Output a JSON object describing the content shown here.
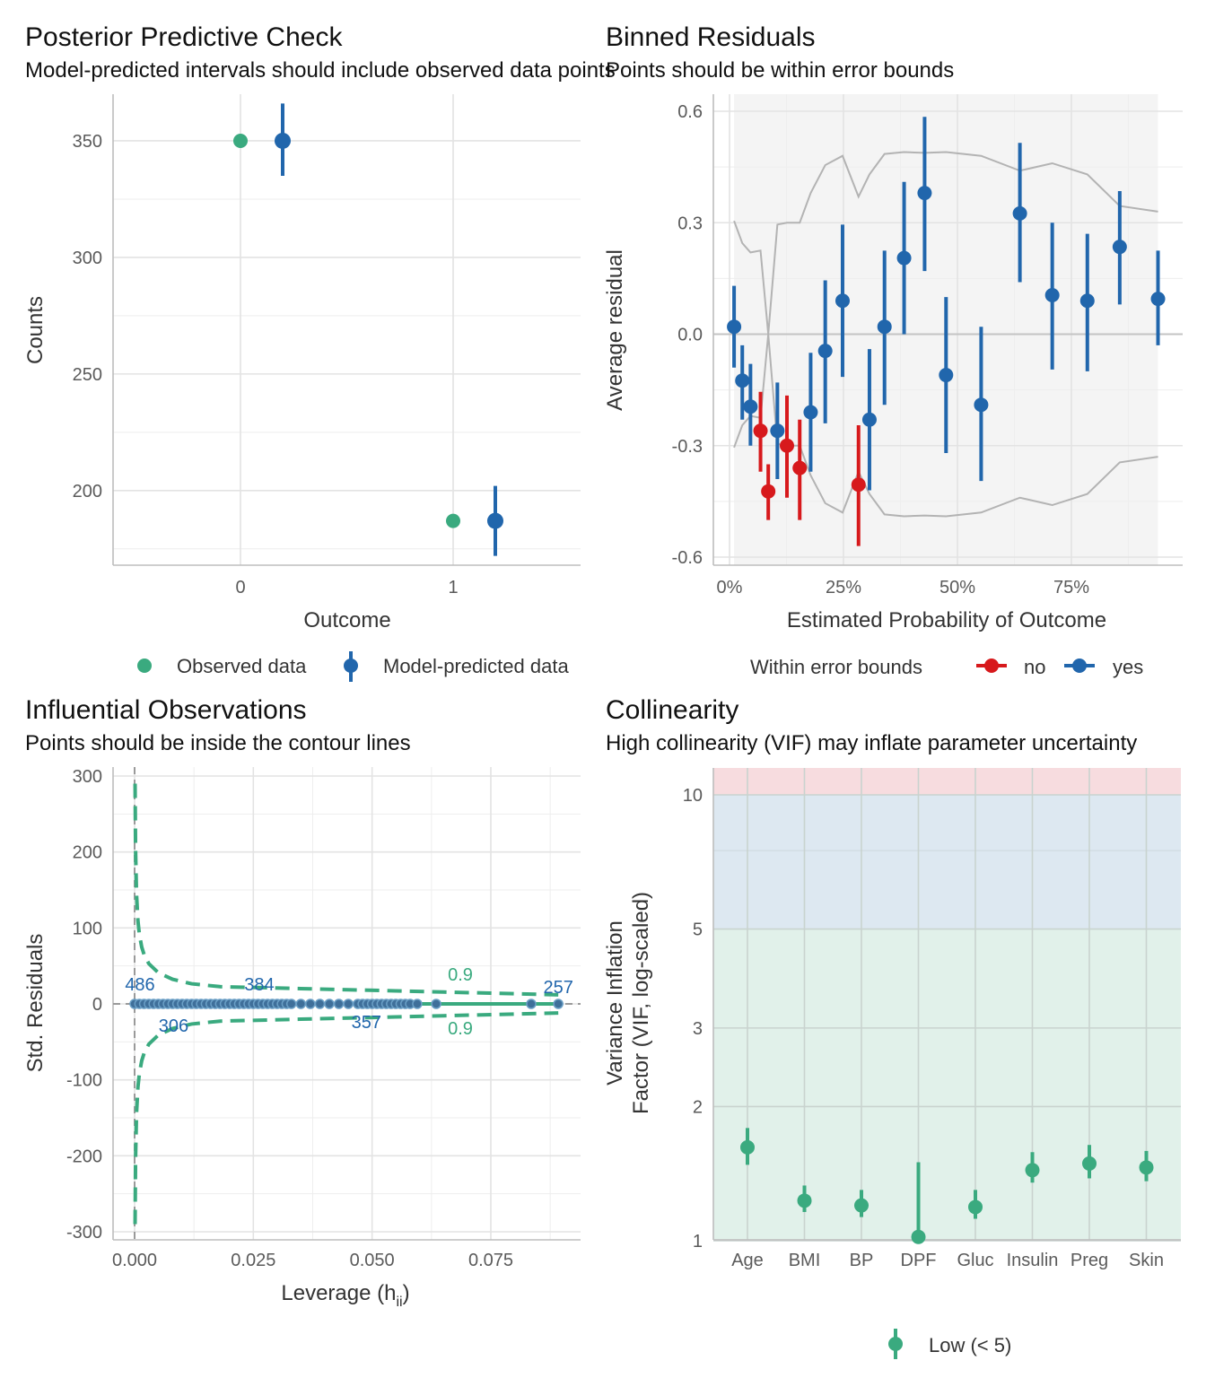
{
  "colors": {
    "observed": "#3aaa7f",
    "predicted": "#2166ac",
    "within_no": "#d7191c",
    "within_yes": "#2166ac",
    "bound_line": "#b3b3b3",
    "contour": "#3aaa7f",
    "vif_low_bg": "#e1f1ea",
    "vif_mod_bg": "#dde8f1",
    "vif_high_bg": "#f7dcdf",
    "vif_point": "#3aaa7f"
  },
  "chart_data": [
    {
      "type": "scatter",
      "title": "Posterior Predictive Check",
      "subtitle": "Model-predicted intervals should include observed data points",
      "xlabel": "Outcome",
      "ylabel": "Counts",
      "categories": [
        "0",
        "1"
      ],
      "yticks": [
        "200",
        "250",
        "300",
        "350"
      ],
      "ylim": [
        168,
        370
      ],
      "observed": [
        350,
        187
      ],
      "predicted": [
        {
          "value": 350,
          "low": 335,
          "high": 366
        },
        {
          "value": 187,
          "low": 172,
          "high": 202
        }
      ],
      "legend": [
        "Observed data",
        "Model-predicted data"
      ]
    },
    {
      "type": "scatter",
      "title": "Binned Residuals",
      "subtitle": "Points should be within error bounds",
      "xlabel": "Estimated Probability of Outcome",
      "ylabel": "Average residual",
      "xticks": [
        "0%",
        "25%",
        "50%",
        "75%"
      ],
      "yticks": [
        "-0.6",
        "-0.3",
        "0.0",
        "0.3",
        "0.6"
      ],
      "xlim": [
        -0.02,
        0.97
      ],
      "ylim": [
        -0.62,
        0.63
      ],
      "legend_title": "Within error bounds",
      "legend": [
        "no",
        "yes"
      ],
      "bins": [
        {
          "x": 0.01,
          "y": 0.02,
          "low": -0.09,
          "high": 0.13,
          "within": "yes"
        },
        {
          "x": 0.028,
          "y": -0.125,
          "low": -0.23,
          "high": -0.03,
          "within": "yes"
        },
        {
          "x": 0.046,
          "y": -0.195,
          "low": -0.3,
          "high": -0.08,
          "within": "yes"
        },
        {
          "x": 0.068,
          "y": -0.26,
          "low": -0.37,
          "high": -0.155,
          "within": "no"
        },
        {
          "x": 0.085,
          "y": -0.423,
          "low": -0.5,
          "high": -0.35,
          "within": "no"
        },
        {
          "x": 0.105,
          "y": -0.26,
          "low": -0.39,
          "high": -0.13,
          "within": "yes"
        },
        {
          "x": 0.126,
          "y": -0.3,
          "low": -0.44,
          "high": -0.165,
          "within": "no"
        },
        {
          "x": 0.154,
          "y": -0.36,
          "low": -0.5,
          "high": -0.23,
          "within": "no"
        },
        {
          "x": 0.178,
          "y": -0.21,
          "low": -0.37,
          "high": -0.05,
          "within": "yes"
        },
        {
          "x": 0.21,
          "y": -0.045,
          "low": -0.24,
          "high": 0.145,
          "within": "yes"
        },
        {
          "x": 0.248,
          "y": 0.09,
          "low": -0.115,
          "high": 0.295,
          "within": "yes"
        },
        {
          "x": 0.283,
          "y": -0.405,
          "low": -0.57,
          "high": -0.245,
          "within": "no"
        },
        {
          "x": 0.307,
          "y": -0.23,
          "low": -0.42,
          "high": -0.04,
          "within": "yes"
        },
        {
          "x": 0.34,
          "y": 0.02,
          "low": -0.19,
          "high": 0.225,
          "within": "yes"
        },
        {
          "x": 0.383,
          "y": 0.205,
          "low": 0.0,
          "high": 0.41,
          "within": "yes"
        },
        {
          "x": 0.428,
          "y": 0.38,
          "low": 0.17,
          "high": 0.585,
          "within": "yes"
        },
        {
          "x": 0.475,
          "y": -0.11,
          "low": -0.32,
          "high": 0.1,
          "within": "yes"
        },
        {
          "x": 0.552,
          "y": -0.19,
          "low": -0.395,
          "high": 0.02,
          "within": "yes"
        },
        {
          "x": 0.637,
          "y": 0.325,
          "low": 0.14,
          "high": 0.515,
          "within": "yes"
        },
        {
          "x": 0.708,
          "y": 0.105,
          "low": -0.095,
          "high": 0.3,
          "within": "yes"
        },
        {
          "x": 0.785,
          "y": 0.09,
          "low": -0.1,
          "high": 0.27,
          "within": "yes"
        },
        {
          "x": 0.856,
          "y": 0.235,
          "low": 0.08,
          "high": 0.385,
          "within": "yes"
        },
        {
          "x": 0.94,
          "y": 0.095,
          "low": -0.03,
          "high": 0.225,
          "within": "yes"
        }
      ],
      "bounds": [
        {
          "x": 0.01,
          "upper": 0.305,
          "lower": -0.305
        },
        {
          "x": 0.028,
          "upper": 0.245,
          "lower": -0.245
        },
        {
          "x": 0.046,
          "upper": 0.22,
          "lower": -0.22
        },
        {
          "x": 0.068,
          "upper": 0.225,
          "lower": -0.225
        },
        {
          "x": 0.085,
          "upper": 0.0,
          "lower": 0.0
        },
        {
          "x": 0.105,
          "upper": 0.295,
          "lower": -0.295
        },
        {
          "x": 0.126,
          "upper": 0.3,
          "lower": -0.3
        },
        {
          "x": 0.154,
          "upper": 0.3,
          "lower": -0.3
        },
        {
          "x": 0.178,
          "upper": 0.38,
          "lower": -0.38
        },
        {
          "x": 0.21,
          "upper": 0.455,
          "lower": -0.455
        },
        {
          "x": 0.248,
          "upper": 0.48,
          "lower": -0.48
        },
        {
          "x": 0.283,
          "upper": 0.37,
          "lower": -0.37
        },
        {
          "x": 0.307,
          "upper": 0.43,
          "lower": -0.43
        },
        {
          "x": 0.34,
          "upper": 0.485,
          "lower": -0.485
        },
        {
          "x": 0.383,
          "upper": 0.49,
          "lower": -0.49
        },
        {
          "x": 0.428,
          "upper": 0.488,
          "lower": -0.488
        },
        {
          "x": 0.475,
          "upper": 0.49,
          "lower": -0.49
        },
        {
          "x": 0.552,
          "upper": 0.48,
          "lower": -0.48
        },
        {
          "x": 0.637,
          "upper": 0.44,
          "lower": -0.44
        },
        {
          "x": 0.708,
          "upper": 0.46,
          "lower": -0.46
        },
        {
          "x": 0.785,
          "upper": 0.43,
          "lower": -0.43
        },
        {
          "x": 0.856,
          "upper": 0.345,
          "lower": -0.345
        },
        {
          "x": 0.94,
          "upper": 0.33,
          "lower": -0.33
        }
      ]
    },
    {
      "type": "scatter",
      "title": "Influential Observations",
      "subtitle": "Points should be inside the contour lines",
      "xlabel": "Leverage (h",
      "xlabel_sub": "ii",
      "xlabel_close": ")",
      "ylabel": "Std. Residuals",
      "xticks": [
        "0.000",
        "0.025",
        "0.050",
        "0.075"
      ],
      "yticks": [
        "-300",
        "-200",
        "-100",
        "0",
        "100",
        "200",
        "300"
      ],
      "xlim": [
        -0.0045,
        0.0935
      ],
      "ylim": [
        -308,
        310
      ],
      "contour_label": "0.9",
      "labeled_points": [
        {
          "label": "486",
          "x": 0.0,
          "y": 0
        },
        {
          "label": "384",
          "x": 0.0255,
          "y": 0
        },
        {
          "label": "306",
          "x": 0.0048,
          "y": 0
        },
        {
          "label": "357",
          "x": 0.0488,
          "y": 0
        },
        {
          "label": "257",
          "x": 0.0892,
          "y": 0
        }
      ],
      "points_x": [
        0.0,
        0.001,
        0.002,
        0.003,
        0.004,
        0.005,
        0.006,
        0.007,
        0.008,
        0.009,
        0.01,
        0.011,
        0.012,
        0.013,
        0.014,
        0.015,
        0.016,
        0.017,
        0.018,
        0.019,
        0.02,
        0.021,
        0.022,
        0.023,
        0.024,
        0.025,
        0.026,
        0.027,
        0.028,
        0.029,
        0.03,
        0.031,
        0.032,
        0.033,
        0.035,
        0.037,
        0.039,
        0.041,
        0.043,
        0.045,
        0.047,
        0.048,
        0.049,
        0.05,
        0.051,
        0.052,
        0.053,
        0.054,
        0.055,
        0.056,
        0.057,
        0.058,
        0.0595,
        0.0635,
        0.0835,
        0.0892
      ]
    },
    {
      "type": "scatter",
      "title": "Collinearity",
      "subtitle": "High collinearity (VIF) may inflate parameter uncertainty",
      "xlabel": "",
      "ylabel": "Variance Inflation",
      "ylabel2": "Factor (VIF, log-scaled)",
      "yscale": "log",
      "ylim": [
        1,
        11.5
      ],
      "yticks": [
        "1",
        "2",
        "3",
        "5",
        "10"
      ],
      "categories": [
        "Age",
        "BMI",
        "BP",
        "DPF",
        "Gluc",
        "Insulin",
        "Preg",
        "Skin"
      ],
      "values": [
        1.62,
        1.23,
        1.2,
        1.02,
        1.19,
        1.44,
        1.49,
        1.46
      ],
      "low": [
        1.48,
        1.16,
        1.13,
        1.0,
        1.12,
        1.35,
        1.38,
        1.36
      ],
      "high": [
        1.79,
        1.33,
        1.3,
        1.5,
        1.3,
        1.58,
        1.64,
        1.59
      ],
      "legend": [
        "Low (< 5)"
      ]
    }
  ]
}
